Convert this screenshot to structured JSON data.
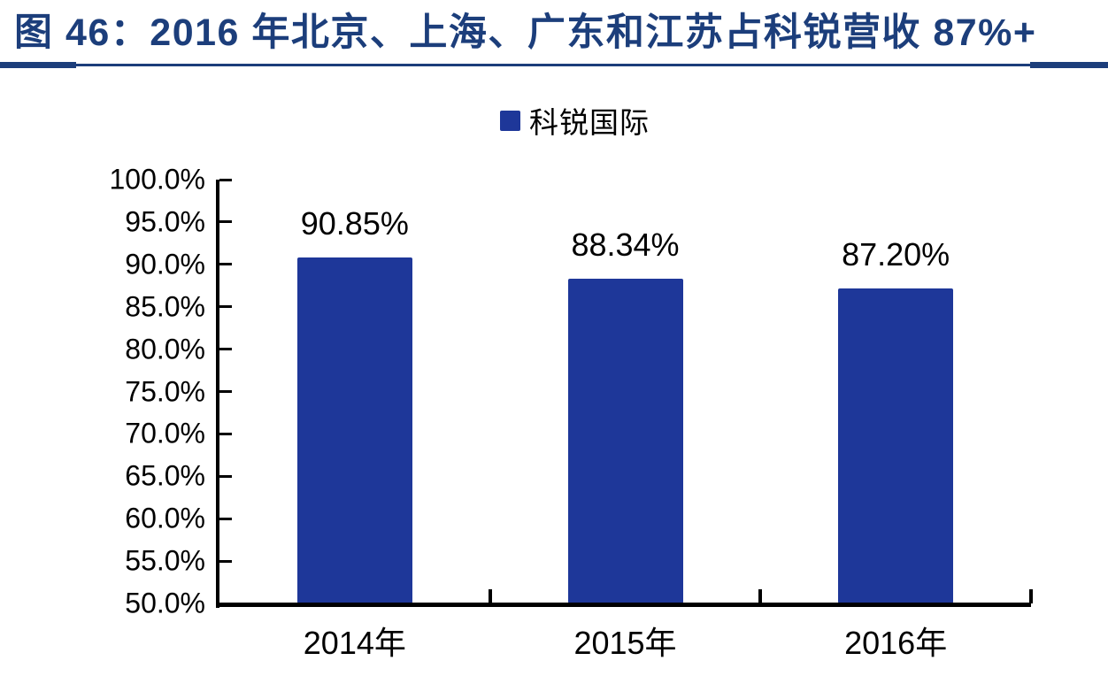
{
  "colors": {
    "title": "#1C3E7B",
    "bar": "#1E3799",
    "axis": "#000000",
    "label_text": "#000000"
  },
  "header": {
    "title": "图 46：2016 年北京、上海、广东和江苏占科锐营收 87%+"
  },
  "legend": {
    "items": [
      {
        "label": "科锐国际",
        "color": "#1E3799"
      }
    ]
  },
  "chart_data": {
    "type": "bar",
    "title": "图 46：2016 年北京、上海、广东和江苏占科锐营收 87%+",
    "categories": [
      "2014年",
      "2015年",
      "2016年"
    ],
    "series": [
      {
        "name": "科锐国际",
        "values": [
          90.85,
          88.34,
          87.2
        ]
      }
    ],
    "data_labels": [
      "90.85%",
      "88.34%",
      "87.20%"
    ],
    "xlabel": "",
    "ylabel": "",
    "ylim": [
      50,
      100
    ],
    "ytick_step": 5,
    "ytick_labels": [
      "100.0%",
      "95.0%",
      "90.0%",
      "85.0%",
      "80.0%",
      "75.0%",
      "70.0%",
      "65.0%",
      "60.0%",
      "55.0%",
      "50.0%"
    ],
    "grid": false,
    "legend_position": "top-center",
    "bar_color": "#1E3799"
  }
}
